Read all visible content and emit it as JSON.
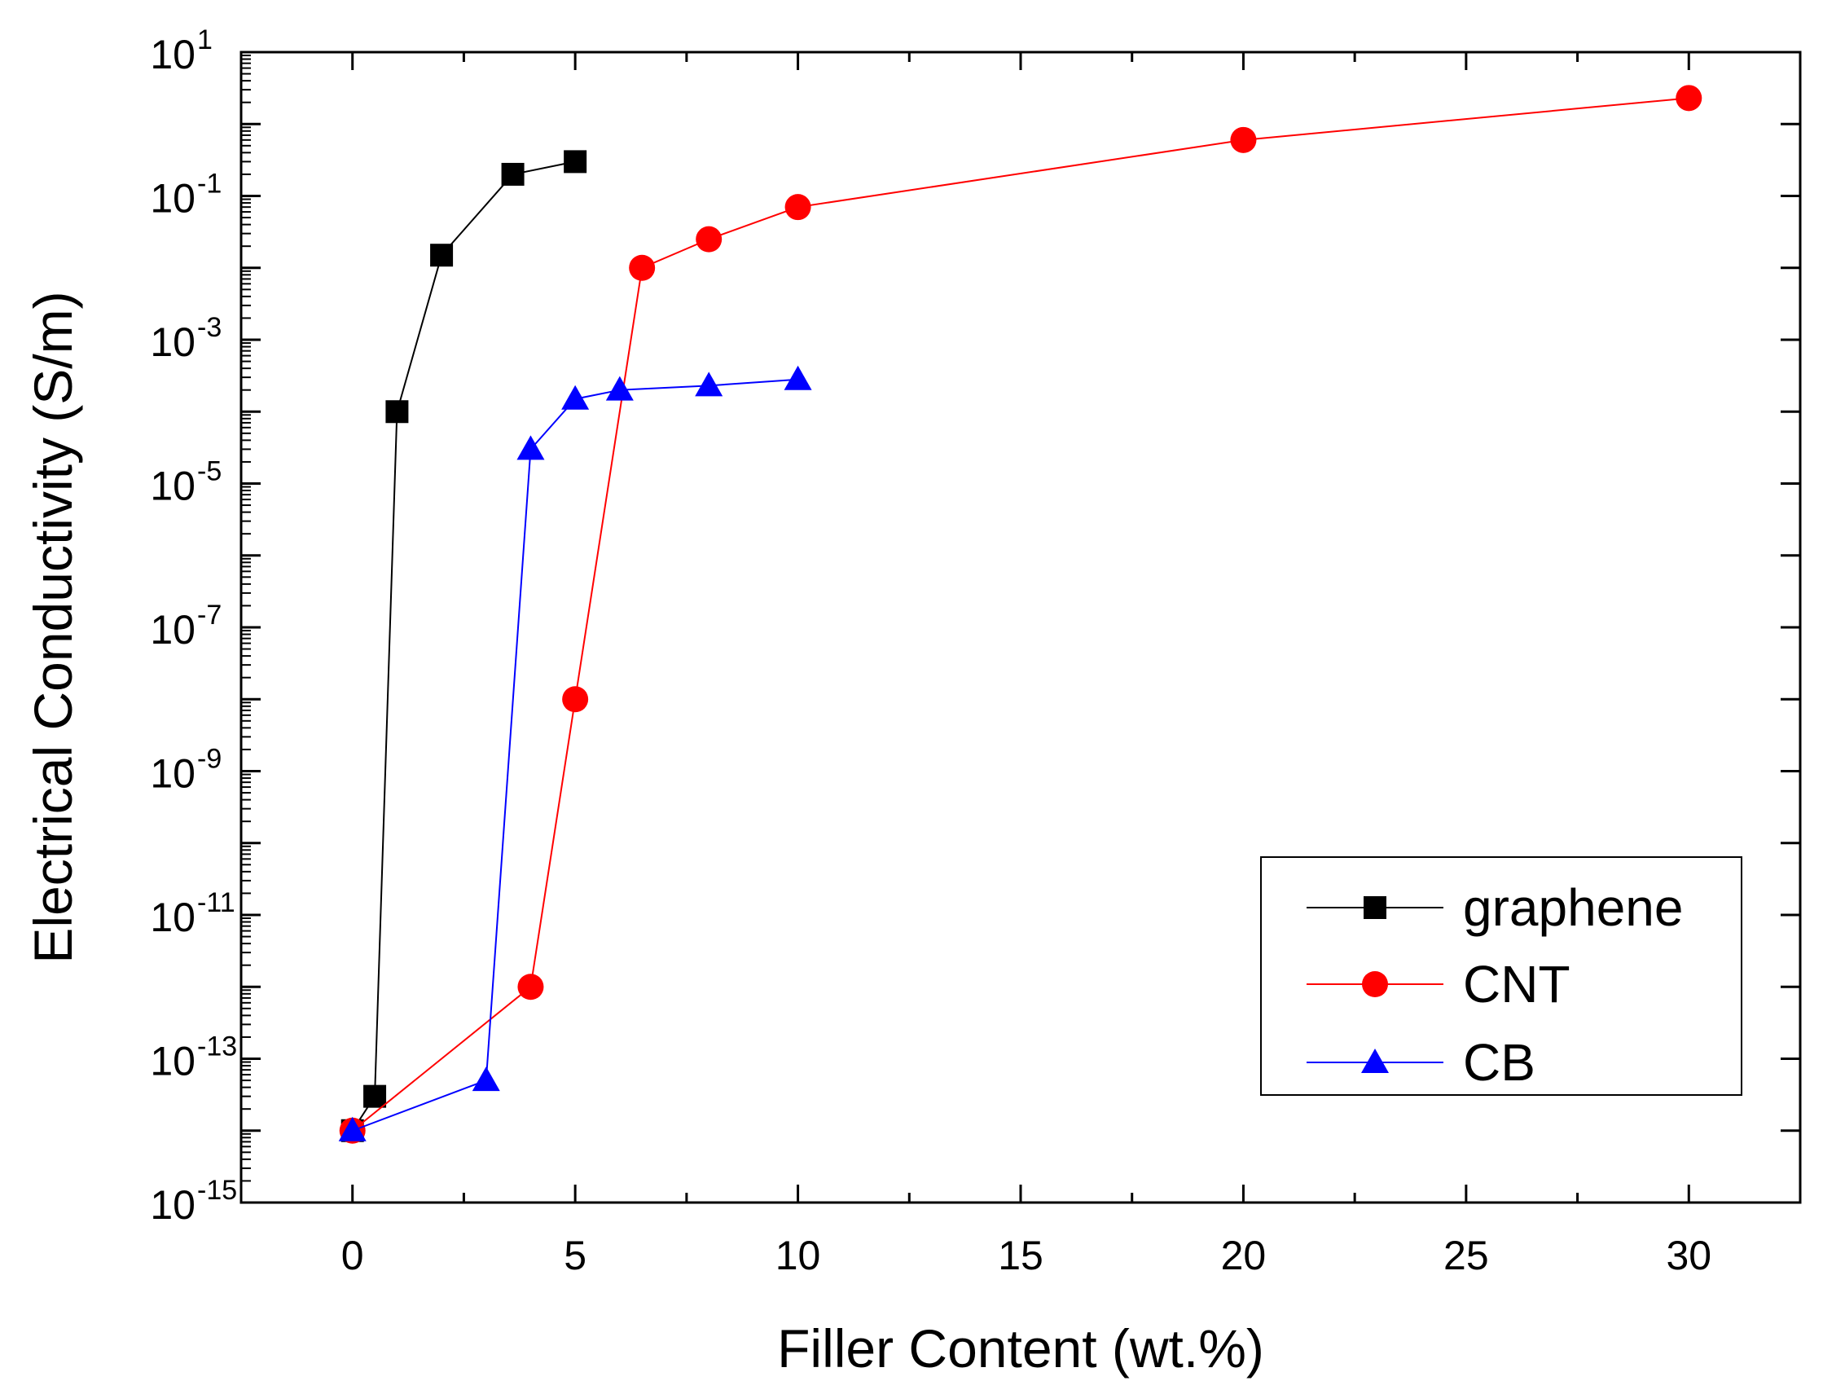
{
  "chart_data": {
    "type": "line",
    "xlabel": "Filler Content (wt.%)",
    "ylabel": "Electrical Conductivity (S/m)",
    "xlim": [
      -2.5,
      32.5
    ],
    "ylim_exponent": [
      -15,
      1
    ],
    "yscale": "log",
    "xticks": [
      0,
      5,
      10,
      15,
      20,
      25,
      30
    ],
    "xtick_labels": [
      "0",
      "5",
      "10",
      "15",
      "20",
      "25",
      "30"
    ],
    "yticks": [
      {
        "exp": 1,
        "base": "10",
        "sup": "1"
      },
      {
        "exp": -1,
        "base": "10",
        "sup": "-1"
      },
      {
        "exp": -3,
        "base": "10",
        "sup": "-3"
      },
      {
        "exp": -5,
        "base": "10",
        "sup": "-5"
      },
      {
        "exp": -7,
        "base": "10",
        "sup": "-7"
      },
      {
        "exp": -9,
        "base": "10",
        "sup": "-9"
      },
      {
        "exp": -11,
        "base": "10",
        "sup": "-11"
      },
      {
        "exp": -13,
        "base": "10",
        "sup": "-13"
      },
      {
        "exp": -15,
        "base": "10",
        "sup": "-15"
      }
    ],
    "legend_position": "bottom-right",
    "series": [
      {
        "name": "graphene",
        "color": "#000000",
        "marker": "square",
        "x": [
          0,
          0.5,
          1,
          2,
          3.6,
          5
        ],
        "y": [
          1e-14,
          3e-14,
          0.0001,
          0.015,
          0.2,
          0.3
        ]
      },
      {
        "name": "CNT",
        "color": "#ff0000",
        "marker": "circle",
        "x": [
          0,
          4,
          5,
          6.5,
          8,
          10,
          20,
          30
        ],
        "y": [
          1e-14,
          1e-12,
          1e-08,
          0.01,
          0.025,
          0.07,
          0.6,
          2.3
        ]
      },
      {
        "name": "CB",
        "color": "#0000ff",
        "marker": "triangle",
        "x": [
          0,
          3,
          4,
          5,
          6,
          8,
          10
        ],
        "y": [
          1e-14,
          5e-14,
          3e-05,
          0.00015,
          0.0002,
          0.00023,
          0.00028
        ]
      }
    ]
  }
}
